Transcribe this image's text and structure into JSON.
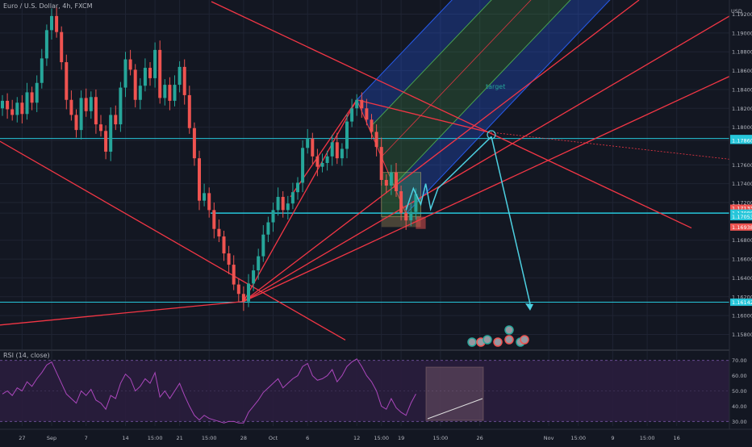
{
  "header": {
    "symbol_title": "Euro / U.S. Dollar, 4h, FXCM",
    "currency_label": "USD",
    "rsi_title": "RSI (14, close)"
  },
  "annotations": {
    "target_label": "target"
  },
  "colors": {
    "background": "#131722",
    "grid": "#1f2433",
    "up_candle": "#26a69a",
    "down_candle": "#ef5350",
    "trend_red": "#f23645",
    "horizontal_cyan": "#26c6da",
    "arrow_cyan": "#4dd0e1",
    "channel_blue": "#2962ff",
    "channel_green": "#4caf50",
    "rsi_line": "#ab47bc",
    "rsi_band": "#2a1d3d",
    "box_orange": "#c8a96a"
  },
  "chart_data": {
    "type": "candlestick",
    "price_axis": {
      "ylim": [
        1.1565,
        1.1935
      ],
      "ticks": [
        "1.19200",
        "1.19000",
        "1.18800",
        "1.18600",
        "1.18400",
        "1.18200",
        "1.18000",
        "1.17860",
        "1.17600",
        "1.17400",
        "1.17200",
        "1.17088",
        "1.16800",
        "1.16600",
        "1.16400",
        "1.16200",
        "1.16000",
        "1.15800"
      ],
      "tick_values": [
        1.192,
        1.19,
        1.188,
        1.186,
        1.184,
        1.182,
        1.18,
        1.1786,
        1.176,
        1.174,
        1.172,
        1.17088,
        1.168,
        1.166,
        1.164,
        1.162,
        1.16,
        1.158
      ],
      "badges": [
        {
          "label": "1.17879",
          "value": 1.1788,
          "color": "#26c6da"
        },
        {
          "label": "1.17860",
          "value": 1.1786,
          "color": "#26c6da"
        },
        {
          "label": "1.17133",
          "value": 1.1714,
          "color": "#ef5350"
        },
        {
          "label": "1.17088",
          "value": 1.17088,
          "color": "#26c6da"
        },
        {
          "label": "1.17053",
          "value": 1.1705,
          "color": "#26c6da"
        },
        {
          "label": "1.16938",
          "value": 1.1694,
          "color": "#ef5350"
        },
        {
          "label": "1.16142",
          "value": 1.16142,
          "color": "#26c6da"
        }
      ]
    },
    "rsi_axis": {
      "ylim": [
        27,
        73
      ],
      "ticks": [
        "70.00",
        "60.00",
        "50.00",
        "40.00",
        "30.00"
      ],
      "tick_values": [
        70,
        60,
        50,
        40,
        30
      ],
      "band": [
        30,
        70
      ]
    },
    "x_axis": {
      "ticks": [
        "27",
        "Sep",
        "7",
        "14",
        "15:00",
        "21",
        "15:00",
        "28",
        "Oct",
        "6",
        "12",
        "15:00",
        "19",
        "15:00",
        "26",
        "Nov",
        "15:00",
        "9",
        "15:00",
        "16"
      ],
      "tick_bars": [
        4,
        10,
        17,
        25,
        31,
        36,
        42,
        49,
        55,
        62,
        72,
        77,
        81,
        89,
        97,
        111,
        117,
        124,
        131,
        137
      ]
    },
    "close": [
      1.1828,
      1.1819,
      1.1813,
      1.1826,
      1.1814,
      1.1837,
      1.1826,
      1.1847,
      1.1873,
      1.1903,
      1.1918,
      1.1901,
      1.1869,
      1.1829,
      1.1813,
      1.1797,
      1.1831,
      1.1817,
      1.1832,
      1.1803,
      1.1796,
      1.1774,
      1.1813,
      1.1803,
      1.1842,
      1.1872,
      1.1861,
      1.1829,
      1.1844,
      1.1863,
      1.1852,
      1.1882,
      1.1831,
      1.1845,
      1.1828,
      1.1845,
      1.1864,
      1.1834,
      1.1799,
      1.1767,
      1.1722,
      1.173,
      1.1712,
      1.1692,
      1.1684,
      1.1666,
      1.1654,
      1.1633,
      1.1623,
      1.1615,
      1.1634,
      1.1648,
      1.1663,
      1.1686,
      1.1699,
      1.1712,
      1.1726,
      1.1712,
      1.1719,
      1.1731,
      1.1741,
      1.1778,
      1.1788,
      1.1769,
      1.1758,
      1.1762,
      1.1769,
      1.1784,
      1.1767,
      1.1777,
      1.1806,
      1.182,
      1.1829,
      1.182,
      1.1808,
      1.1795,
      1.1779,
      1.1744,
      1.1738,
      1.1752,
      1.1732,
      1.1709,
      1.1701,
      1.171,
      1.1729
    ],
    "rsi": [
      48,
      50,
      47,
      52,
      50,
      56,
      53,
      58,
      62,
      67,
      69,
      62,
      55,
      48,
      45,
      42,
      50,
      47,
      51,
      44,
      42,
      38,
      47,
      45,
      55,
      61,
      58,
      50,
      53,
      58,
      55,
      62,
      46,
      50,
      45,
      50,
      55,
      47,
      40,
      34,
      31,
      34,
      32,
      31,
      30,
      29,
      30,
      30,
      29,
      29,
      36,
      40,
      44,
      49,
      52,
      55,
      58,
      52,
      55,
      58,
      60,
      66,
      68,
      60,
      57,
      58,
      60,
      64,
      56,
      60,
      66,
      69,
      71,
      66,
      60,
      56,
      50,
      40,
      38,
      45,
      39,
      36,
      34,
      42,
      48
    ]
  }
}
